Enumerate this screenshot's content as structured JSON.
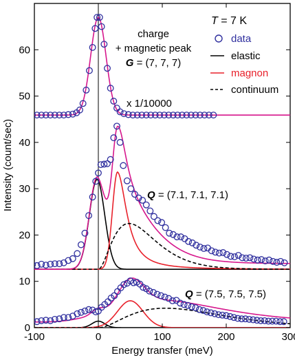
{
  "chart_data": {
    "type": "scatter",
    "xlabel": "Energy transfer (meV)",
    "ylabel": "Intensity (count/sec)",
    "xlim": [
      -100,
      300
    ],
    "ylim": [
      0,
      70
    ],
    "x_ticks": [
      -100,
      0,
      100,
      200,
      300
    ],
    "y_ticks": [
      0,
      10,
      20,
      30,
      40,
      50,
      60
    ],
    "grid": false,
    "legend_position": "top-right",
    "legend": {
      "temperature_label": "T",
      "temperature_value": " = 7 K",
      "entries": [
        {
          "label": "data",
          "style": "open-circle",
          "color": "#2f2f9e"
        },
        {
          "label": "elastic",
          "style": "solid",
          "color": "#000000"
        },
        {
          "label": "magnon",
          "style": "solid",
          "color": "#e8202a"
        },
        {
          "label": "continuum",
          "style": "dashed",
          "color": "#000000"
        }
      ]
    },
    "colors": {
      "data": "#2f2f9e",
      "fit": "#d6168c",
      "elastic": "#000000",
      "magnon": "#e8202a",
      "continuum": "#000000"
    },
    "annotations": {
      "top_line1": "charge",
      "top_line2": "+ magnetic peak",
      "top_line3_symbol": "G",
      "top_line3_value": " = (7, 7, 7)",
      "scale": "x 1/10000",
      "mid_symbol": "Q",
      "mid_value": " = (7.1, 7.1, 7.1)",
      "low_symbol": "Q",
      "low_value": " = (7.5, 7.5, 7.5)"
    },
    "panels": [
      {
        "name": "G = (7, 7, 7)",
        "baseline": 45.9,
        "data_points": [
          [
            -110,
            45.9
          ],
          [
            -103,
            45.9
          ],
          [
            -96,
            45.9
          ],
          [
            -89,
            45.9
          ],
          [
            -82,
            45.9
          ],
          [
            -75,
            45.9
          ],
          [
            -68,
            45.9
          ],
          [
            -61,
            45.9
          ],
          [
            -54,
            45.9
          ],
          [
            -47,
            46.0
          ],
          [
            -40,
            46.1
          ],
          [
            -34,
            46.4
          ],
          [
            -29,
            47.0
          ],
          [
            -24,
            48.4
          ],
          [
            -19,
            51.3
          ],
          [
            -14,
            55.5
          ],
          [
            -9,
            60.5
          ],
          [
            -5,
            64.6
          ],
          [
            -2,
            67.0
          ],
          [
            2,
            67.0
          ],
          [
            5,
            65.0
          ],
          [
            9,
            61.2
          ],
          [
            14,
            56.0
          ],
          [
            19,
            51.7
          ],
          [
            24,
            48.9
          ],
          [
            29,
            47.4
          ],
          [
            34,
            46.6
          ],
          [
            40,
            46.2
          ],
          [
            47,
            46.0
          ],
          [
            54,
            45.9
          ],
          [
            61,
            45.9
          ],
          [
            68,
            45.9
          ],
          [
            75,
            45.9
          ],
          [
            82,
            45.9
          ],
          [
            89,
            45.9
          ],
          [
            96,
            45.9
          ],
          [
            103,
            45.9
          ],
          [
            110,
            45.9
          ],
          [
            117,
            45.9
          ],
          [
            124,
            45.9
          ],
          [
            131,
            45.9
          ],
          [
            138,
            45.9
          ],
          [
            145,
            45.9
          ],
          [
            152,
            45.9
          ],
          [
            159,
            45.9
          ],
          [
            166,
            45.9
          ],
          [
            173,
            45.9
          ],
          [
            180,
            45.9
          ]
        ],
        "fit": {
          "peak_height": 21.1,
          "center": 0,
          "sigma": 12
        }
      },
      {
        "name": "Q = (7.1, 7.1, 7.1)",
        "baseline": 12.6,
        "data_points": [
          [
            -110,
            13.3
          ],
          [
            -103,
            13.6
          ],
          [
            -96,
            13.4
          ],
          [
            -89,
            13.7
          ],
          [
            -82,
            13.5
          ],
          [
            -75,
            13.7
          ],
          [
            -68,
            13.8
          ],
          [
            -61,
            13.8
          ],
          [
            -54,
            14.0
          ],
          [
            -47,
            14.5
          ],
          [
            -40,
            14.9
          ],
          [
            -33,
            16.0
          ],
          [
            -27,
            17.9
          ],
          [
            -21,
            20.4
          ],
          [
            -15,
            24.2
          ],
          [
            -9,
            28.2
          ],
          [
            -4,
            31.6
          ],
          [
            0,
            33.4
          ],
          [
            4,
            35.2
          ],
          [
            9,
            35.3
          ],
          [
            14,
            35.4
          ],
          [
            19,
            36.3
          ],
          [
            24,
            41.0
          ],
          [
            29,
            43.5
          ],
          [
            34,
            40.0
          ],
          [
            39,
            35.0
          ],
          [
            45,
            31.7
          ],
          [
            51,
            30.0
          ],
          [
            57,
            28.8
          ],
          [
            63,
            28.0
          ],
          [
            69,
            27.5
          ],
          [
            75,
            26.5
          ],
          [
            81,
            25.2
          ],
          [
            87,
            24.0
          ],
          [
            93,
            23.1
          ],
          [
            99,
            22.7
          ],
          [
            105,
            21.6
          ],
          [
            111,
            20.4
          ],
          [
            117,
            20.1
          ],
          [
            123,
            19.6
          ],
          [
            129,
            19.6
          ],
          [
            135,
            19.2
          ],
          [
            141,
            18.6
          ],
          [
            147,
            18.3
          ],
          [
            153,
            17.8
          ],
          [
            159,
            17.4
          ],
          [
            165,
            17.1
          ],
          [
            171,
            17.2
          ],
          [
            177,
            16.6
          ],
          [
            183,
            16.3
          ],
          [
            189,
            16.1
          ],
          [
            195,
            16.2
          ],
          [
            201,
            15.8
          ],
          [
            207,
            15.4
          ],
          [
            213,
            15.3
          ],
          [
            219,
            15.6
          ],
          [
            225,
            15.1
          ],
          [
            231,
            15.0
          ],
          [
            237,
            15.1
          ],
          [
            243,
            14.8
          ],
          [
            249,
            14.6
          ],
          [
            255,
            14.7
          ],
          [
            261,
            14.4
          ],
          [
            267,
            14.6
          ],
          [
            273,
            14.3
          ],
          [
            279,
            14.1
          ],
          [
            285,
            14.3
          ],
          [
            291,
            14.0
          ]
        ],
        "fit": {
          "elastic_height": 19.4,
          "elastic_center": -2,
          "elastic_sigma": 12,
          "magnon_height": 21.0,
          "magnon_center": 30
        },
        "continuum_peak": 22.5
      },
      {
        "name": "Q = (7.5, 7.5, 7.5)",
        "baseline": 0,
        "data_points": [
          [
            -110,
            1.2
          ],
          [
            -103,
            1.4
          ],
          [
            -96,
            1.3
          ],
          [
            -89,
            1.5
          ],
          [
            -82,
            1.6
          ],
          [
            -75,
            1.5
          ],
          [
            -68,
            1.8
          ],
          [
            -61,
            1.9
          ],
          [
            -54,
            2.2
          ],
          [
            -47,
            2.2
          ],
          [
            -40,
            2.5
          ],
          [
            -33,
            3.0
          ],
          [
            -27,
            3.3
          ],
          [
            -21,
            3.6
          ],
          [
            -15,
            3.9
          ],
          [
            -9,
            3.8
          ],
          [
            -4,
            3.4
          ],
          [
            0,
            3.6
          ],
          [
            5,
            4.4
          ],
          [
            10,
            5.0
          ],
          [
            15,
            5.6
          ],
          [
            20,
            6.4
          ],
          [
            25,
            6.9
          ],
          [
            30,
            7.8
          ],
          [
            35,
            8.6
          ],
          [
            40,
            9.3
          ],
          [
            45,
            9.6
          ],
          [
            50,
            10.1
          ],
          [
            55,
            9.7
          ],
          [
            60,
            9.8
          ],
          [
            65,
            9.4
          ],
          [
            70,
            8.7
          ],
          [
            75,
            8.4
          ],
          [
            80,
            7.9
          ],
          [
            86,
            7.6
          ],
          [
            92,
            7.2
          ],
          [
            98,
            6.9
          ],
          [
            104,
            6.6
          ],
          [
            110,
            6.3
          ],
          [
            116,
            5.8
          ],
          [
            122,
            5.9
          ],
          [
            128,
            5.3
          ],
          [
            134,
            5.0
          ],
          [
            140,
            4.8
          ],
          [
            146,
            4.5
          ],
          [
            152,
            4.3
          ],
          [
            158,
            3.9
          ],
          [
            164,
            3.7
          ],
          [
            170,
            3.4
          ],
          [
            176,
            3.2
          ],
          [
            182,
            3.0
          ],
          [
            188,
            2.8
          ],
          [
            194,
            2.7
          ],
          [
            200,
            2.6
          ],
          [
            206,
            2.4
          ],
          [
            212,
            2.2
          ],
          [
            218,
            2.0
          ],
          [
            224,
            1.9
          ],
          [
            230,
            1.9
          ],
          [
            236,
            1.8
          ],
          [
            242,
            1.7
          ],
          [
            248,
            1.6
          ],
          [
            254,
            1.5
          ],
          [
            260,
            1.5
          ],
          [
            266,
            1.4
          ],
          [
            272,
            1.4
          ],
          [
            278,
            1.4
          ],
          [
            284,
            1.3
          ],
          [
            290,
            1.3
          ]
        ],
        "fit": {
          "elastic_height": 1.4,
          "magnon_height": 5.8,
          "magnon_center": 50
        },
        "continuum_peak": 4.2
      }
    ]
  }
}
